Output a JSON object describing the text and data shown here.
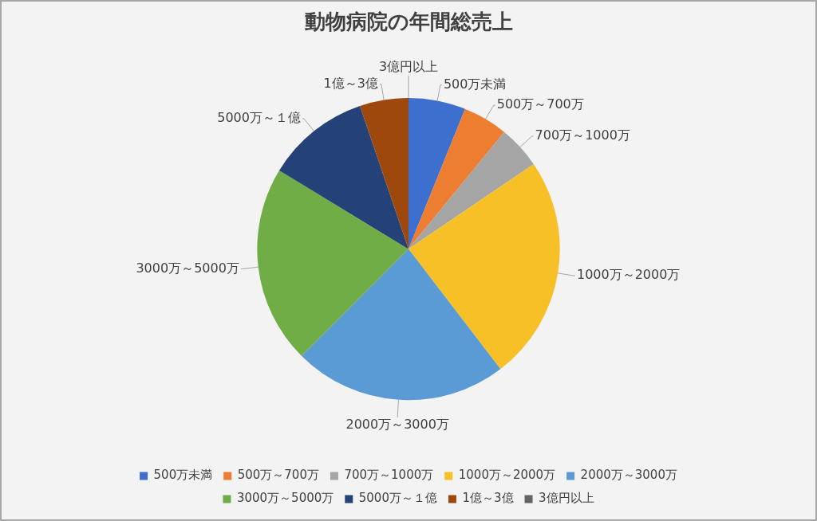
{
  "chart_data": {
    "type": "pie",
    "title": "動物病院の年間総売上",
    "categories": [
      "500万未満",
      "500万～700万",
      "700万～1000万",
      "1000万～2000万",
      "2000万～3000万",
      "3000万～5000万",
      "5000万～１億",
      "1億～3億",
      "3億円以上"
    ],
    "values": [
      6.1,
      4.8,
      4.6,
      24.1,
      22.9,
      21.2,
      11.1,
      5.2,
      0
    ],
    "colors": [
      "#3d6fcf",
      "#ed7d31",
      "#a5a5a5",
      "#f7c027",
      "#5b9bd5",
      "#70ad47",
      "#244178",
      "#9e480e",
      "#636363"
    ],
    "legend": "bottom"
  }
}
